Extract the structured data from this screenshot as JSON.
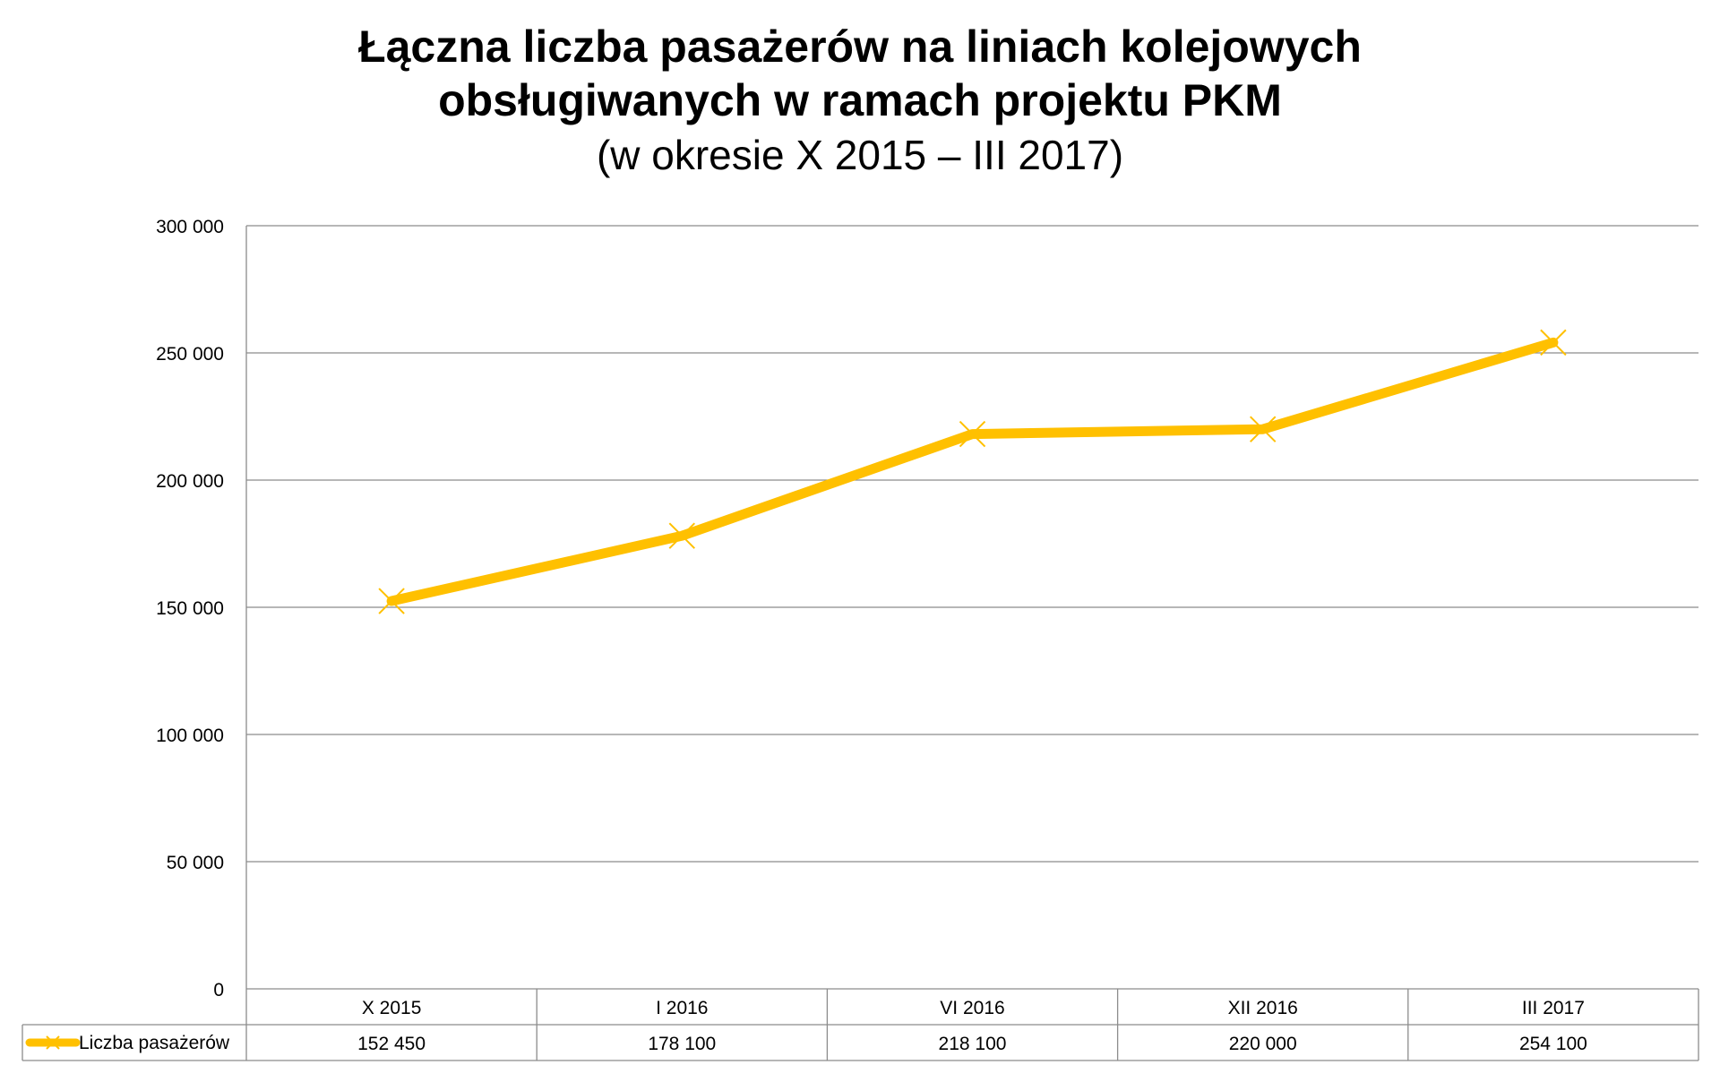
{
  "chart_data": {
    "type": "line",
    "title_lines": [
      "Łączna liczba pasażerów na liniach kolejowych",
      "obsługiwanych w ramach projektu PKM"
    ],
    "subtitle": "(w okresie X 2015 – III 2017)",
    "categories": [
      "X 2015",
      "I 2016",
      "VI 2016",
      "XII 2016",
      "III 2017"
    ],
    "series": [
      {
        "name": "Liczba pasażerów",
        "values": [
          152450,
          178100,
          218100,
          220000,
          254100
        ],
        "value_labels": [
          "152 450",
          "178 100",
          "218 100",
          "220 000",
          "254 100"
        ],
        "color": "#FFC000",
        "marker": "x"
      }
    ],
    "ylim": [
      0,
      300000
    ],
    "yticks": [
      0,
      50000,
      100000,
      150000,
      200000,
      250000,
      300000
    ],
    "ytick_labels": [
      "0",
      "50 000",
      "100 000",
      "150 000",
      "200 000",
      "250 000",
      "300 000"
    ],
    "grid": true,
    "legend": "data-table",
    "xlabel": "",
    "ylabel": ""
  }
}
